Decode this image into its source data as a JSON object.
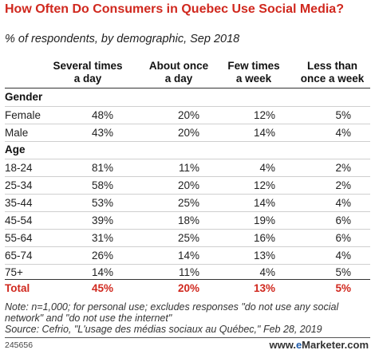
{
  "title": "How Often Do Consumers in Quebec Use Social Media?",
  "subtitle": "% of respondents, by demographic, Sep 2018",
  "columns": [
    "Several times a day",
    "About once a day",
    "Few times a week",
    "Less than once a week"
  ],
  "column_lines": [
    [
      "Several times",
      "a day"
    ],
    [
      "About once",
      "a day"
    ],
    [
      "Few times",
      "a week"
    ],
    [
      "Less than",
      "once a week"
    ]
  ],
  "sections": [
    {
      "name": "Gender",
      "rows": [
        {
          "label": "Female",
          "values": [
            "48%",
            "20%",
            "12%",
            "5%"
          ]
        },
        {
          "label": "Male",
          "values": [
            "43%",
            "20%",
            "14%",
            "4%"
          ]
        }
      ]
    },
    {
      "name": "Age",
      "rows": [
        {
          "label": "18-24",
          "values": [
            "81%",
            "11%",
            "4%",
            "2%"
          ]
        },
        {
          "label": "25-34",
          "values": [
            "58%",
            "20%",
            "12%",
            "2%"
          ]
        },
        {
          "label": "35-44",
          "values": [
            "53%",
            "25%",
            "14%",
            "4%"
          ]
        },
        {
          "label": "45-54",
          "values": [
            "39%",
            "18%",
            "19%",
            "6%"
          ]
        },
        {
          "label": "55-64",
          "values": [
            "31%",
            "25%",
            "16%",
            "6%"
          ]
        },
        {
          "label": "65-74",
          "values": [
            "26%",
            "14%",
            "13%",
            "4%"
          ]
        },
        {
          "label": "75+",
          "values": [
            "14%",
            "11%",
            "4%",
            "5%"
          ]
        }
      ]
    }
  ],
  "total": {
    "label": "Total",
    "values": [
      "45%",
      "20%",
      "13%",
      "5%"
    ]
  },
  "note": "Note: n=1,000; for personal use; excludes responses \"do not use any social network\" and \"do not use the internet\"",
  "source": "Source: Cefrio, \"L'usage des médias sociaux au Québec,\" Feb 28, 2019",
  "chart_id": "245656",
  "brand": {
    "prefix": "www.",
    "e": "e",
    "name": "Marketer",
    "suffix": ".com"
  },
  "colors": {
    "accent": "#d0281e",
    "brand_blue": "#1e5aa8"
  },
  "chart_data": {
    "type": "table",
    "title": "How Often Do Consumers in Quebec Use Social Media?",
    "subtitle": "% of respondents, by demographic, Sep 2018",
    "columns": [
      "Several times a day",
      "About once a day",
      "Few times a week",
      "Less than once a week"
    ],
    "rows": [
      {
        "group": "Gender",
        "label": "Female",
        "values": [
          48,
          20,
          12,
          5
        ]
      },
      {
        "group": "Gender",
        "label": "Male",
        "values": [
          43,
          20,
          14,
          4
        ]
      },
      {
        "group": "Age",
        "label": "18-24",
        "values": [
          81,
          11,
          4,
          2
        ]
      },
      {
        "group": "Age",
        "label": "25-34",
        "values": [
          58,
          20,
          12,
          2
        ]
      },
      {
        "group": "Age",
        "label": "35-44",
        "values": [
          53,
          25,
          14,
          4
        ]
      },
      {
        "group": "Age",
        "label": "45-54",
        "values": [
          39,
          18,
          19,
          6
        ]
      },
      {
        "group": "Age",
        "label": "55-64",
        "values": [
          31,
          25,
          16,
          6
        ]
      },
      {
        "group": "Age",
        "label": "65-74",
        "values": [
          26,
          14,
          13,
          4
        ]
      },
      {
        "group": "Age",
        "label": "75+",
        "values": [
          14,
          11,
          4,
          5
        ]
      },
      {
        "group": "",
        "label": "Total",
        "values": [
          45,
          20,
          13,
          5
        ]
      }
    ]
  }
}
